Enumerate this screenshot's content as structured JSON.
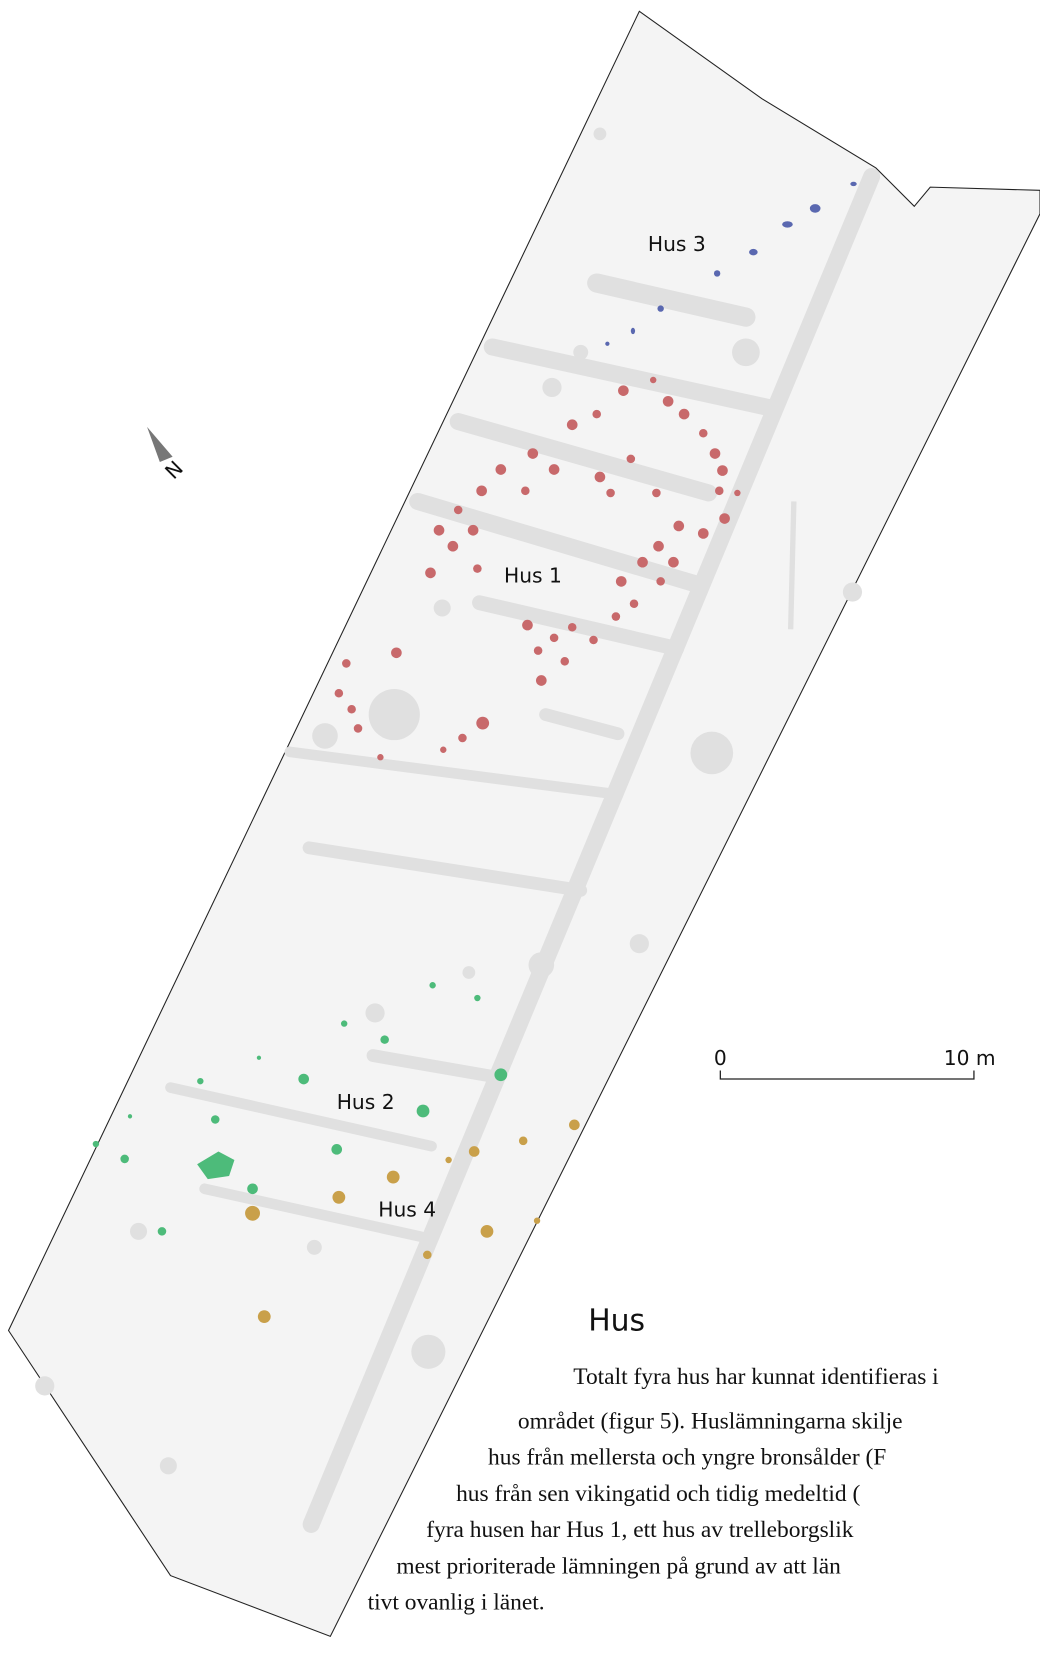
{
  "map": {
    "labels": [
      "Hus 3",
      "Hus 1",
      "Hus 2",
      "Hus 4"
    ],
    "north": "N",
    "scale": {
      "start": "0",
      "end": "10 m"
    }
  },
  "section": {
    "heading": "Hus",
    "lines": [
      "Totalt fyra hus har kunnat identifieras i",
      "området (figur 5). Huslämningarna skilje",
      "hus från mellersta och yngre bronsålder (F",
      "hus från sen vikingatid och tidig medeltid (",
      "fyra husen har Hus 1, ett hus av trelleborgslik",
      "mest prioriterade lämningen på grund av att län",
      "tivt ovanlig i länet."
    ]
  }
}
